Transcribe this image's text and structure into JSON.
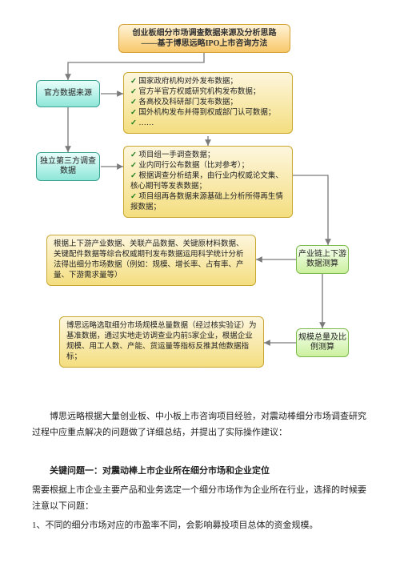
{
  "diagram": {
    "title_line1": "创业板细分市场调查数据来源及分析思路",
    "title_line2": "——基于博思远略IPO上市咨询方法",
    "left_nodes": {
      "l1": "官方数据来源",
      "l2": "独立第三方调查数据"
    },
    "right_nodes": {
      "r1": "产业链上下游数据测算",
      "r2": "规模总量及比例测算"
    },
    "big_nodes": {
      "b1": [
        "国家政府机构对外发布数据；",
        "官方半官方权威研究机构发布数据；",
        "各高校及科研部门发布数据；",
        "国外机构发布并得到权威部门认可数据；",
        "……"
      ],
      "b2": [
        "项目组一手调查数据；",
        "业内同行公布数据（比对参考）；",
        "根据调查分析结果，由行业内权威论文集、核心期刊等发表数据；",
        "项目组再各数据来源基础上分析所得再生情报数据；"
      ],
      "b3": "根据上下游产业数据、关联产品数据、关键原材料数据、关键配件数据等综合权威期刊发布数据运用科学统计分析法得出细分市场数据（例如：规模、增长率、占有率、产量、下游需求量等）",
      "b4": "博思远略选取细分市场规模总量数据（经过核实验证）为基准数据，通过实地走访调查业内前5家企业，根据企业规模、用工人数、产能、货运量等指标反推其他数据指标；"
    },
    "colors": {
      "title_bg_top": "#fff3d6",
      "title_bg_bot": "#f8c86a",
      "title_border": "#d4a030",
      "left_bg_top": "#e8fefb",
      "left_bg_bot": "#8ee6d8",
      "left_border": "#3aa393",
      "right_bg_top": "#f6fff0",
      "right_bg_bot": "#ccf09e",
      "right_border": "#7db84a",
      "big_bg_top": "#fdf6dd",
      "big_bg_bot": "#f4de80",
      "big_border": "#c9a733",
      "connector": "#7a7a7a"
    }
  },
  "text": {
    "p1": "博思远略根据大量创业板、中小板上市咨询项目经验，对震动棒细分市场调查研究过程中应重点解决的问题做了详细总结，并提出了实际操作建议：",
    "h1": "关键问题一：对震动棒上市企业所在细分市场和企业定位",
    "p2": "需要根据上市企业主要产品和业务选定一个细分市场作为企业所在行业，选择的时候要注意以下问题：",
    "p3": "1、不同的细分市场对应的市盈率不同，会影响募投项目总体的资金规模。"
  }
}
